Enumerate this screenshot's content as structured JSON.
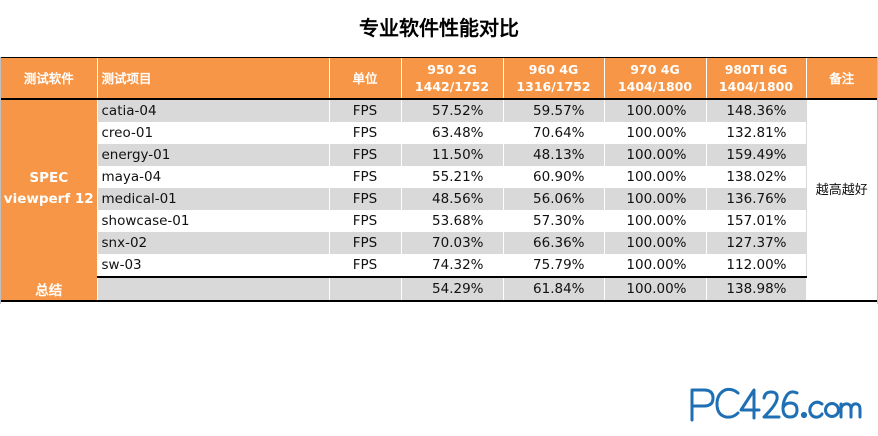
{
  "title": "专业软件性能对比",
  "header": {
    "software": "测试软件",
    "item": "测试项目",
    "unit": "单位",
    "cols": [
      {
        "line1": "950 2G",
        "line2": "1442/1752"
      },
      {
        "line1": "960 4G",
        "line2": "1316/1752"
      },
      {
        "line1": "970 4G",
        "line2": "1404/1800"
      },
      {
        "line1": "980TI 6G",
        "line2": "1404/1800"
      }
    ],
    "note": "备注"
  },
  "group": {
    "line1": "SPEC",
    "line2": "viewperf 12"
  },
  "note_text": "越高越好",
  "rows": [
    {
      "item": "catia-04",
      "unit": "FPS",
      "v": [
        "57.52%",
        "59.57%",
        "100.00%",
        "148.36%"
      ]
    },
    {
      "item": "creo-01",
      "unit": "FPS",
      "v": [
        "63.48%",
        "70.64%",
        "100.00%",
        "132.81%"
      ]
    },
    {
      "item": "energy-01",
      "unit": "FPS",
      "v": [
        "11.50%",
        "48.13%",
        "100.00%",
        "159.49%"
      ]
    },
    {
      "item": "maya-04",
      "unit": "FPS",
      "v": [
        "55.21%",
        "60.90%",
        "100.00%",
        "138.02%"
      ]
    },
    {
      "item": "medical-01",
      "unit": "FPS",
      "v": [
        "48.56%",
        "56.06%",
        "100.00%",
        "136.76%"
      ]
    },
    {
      "item": "showcase-01",
      "unit": "FPS",
      "v": [
        "53.68%",
        "57.30%",
        "100.00%",
        "157.01%"
      ]
    },
    {
      "item": "snx-02",
      "unit": "FPS",
      "v": [
        "70.03%",
        "66.36%",
        "100.00%",
        "127.37%"
      ]
    },
    {
      "item": "sw-03",
      "unit": "FPS",
      "v": [
        "74.32%",
        "75.79%",
        "100.00%",
        "112.00%"
      ]
    }
  ],
  "summary": {
    "label": "总结",
    "v": [
      "54.29%",
      "61.84%",
      "100.00%",
      "138.98%"
    ]
  },
  "watermark": "PC426.com",
  "colors": {
    "accent": "#f79646",
    "stripe": "#d9d9d9",
    "logo": "#1f6fb5"
  }
}
